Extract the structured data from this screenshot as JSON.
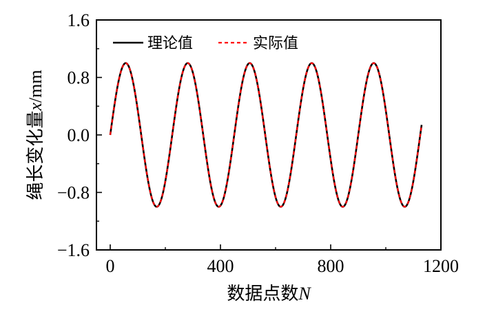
{
  "chart_data": {
    "type": "line",
    "xlabel": {
      "prefix": "数据点数",
      "var": "N"
    },
    "ylabel": {
      "prefix": "绳长变化量",
      "var": "x",
      "unit": "/mm"
    },
    "xlim": [
      -50,
      1200
    ],
    "ylim": [
      -1.6,
      1.6
    ],
    "xticks": [
      0,
      400,
      800,
      1200
    ],
    "yticks": [
      -1.6,
      -0.8,
      0.0,
      0.8,
      1.6
    ],
    "xtick_labels": [
      "0",
      "400",
      "800",
      "1200"
    ],
    "ytick_labels": [
      "−1.6",
      "−0.8",
      "0.0",
      "0.8",
      "1.6"
    ],
    "legend_position": "top-left",
    "grid": false,
    "series": [
      {
        "name": "理论值",
        "style": "solid",
        "color": "#000000",
        "function": "sine",
        "amplitude": 1.0,
        "period": 225,
        "x_range": [
          0,
          1130
        ]
      },
      {
        "name": "实际值",
        "style": "dashed",
        "color": "#ff0000",
        "function": "sine",
        "amplitude": 1.0,
        "period": 225,
        "x_range": [
          0,
          1130
        ]
      }
    ]
  }
}
